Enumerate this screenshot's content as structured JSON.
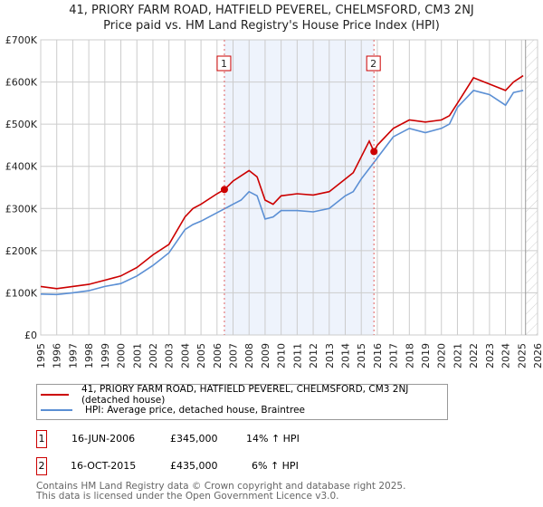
{
  "title": "41, PRIORY FARM ROAD, HATFIELD PEVEREL, CHELMSFORD, CM3 2NJ",
  "subtitle": "Price paid vs. HM Land Registry's House Price Index (HPI)",
  "legend": {
    "property": "41, PRIORY FARM ROAD, HATFIELD PEVEREL, CHELMSFORD, CM3 2NJ (detached house)",
    "hpi": "HPI: Average price, detached house, Braintree"
  },
  "sales": [
    {
      "marker": "1",
      "date": "16-JUN-2006",
      "price": "£345,000",
      "hpi_change": "14% ↑ HPI",
      "x": 2006.46,
      "value": 345000
    },
    {
      "marker": "2",
      "date": "16-OCT-2015",
      "price": "£435,000",
      "hpi_change": "6% ↑ HPI",
      "x": 2015.79,
      "value": 435000
    }
  ],
  "footer": {
    "line1": "Contains HM Land Registry data © Crown copyright and database right 2025.",
    "line2": "This data is licensed under the Open Government Licence v3.0."
  },
  "colors": {
    "property": "#cc0000",
    "hpi": "#5b8fd4",
    "shade": "#eef3fc",
    "grid": "#cccccc"
  },
  "chart_data": {
    "type": "line",
    "xlim": [
      1995,
      2026
    ],
    "ylim": [
      0,
      700000
    ],
    "x_ticks": [
      "1995",
      "1996",
      "1997",
      "1998",
      "1999",
      "2000",
      "2001",
      "2002",
      "2003",
      "2004",
      "2005",
      "2006",
      "2007",
      "2008",
      "2009",
      "2010",
      "2011",
      "2012",
      "2013",
      "2014",
      "2015",
      "2016",
      "2017",
      "2018",
      "2019",
      "2020",
      "2021",
      "2022",
      "2023",
      "2024",
      "2025",
      "2026"
    ],
    "y_ticks": [
      {
        "v": 0,
        "label": "£0"
      },
      {
        "v": 100000,
        "label": "£100K"
      },
      {
        "v": 200000,
        "label": "£200K"
      },
      {
        "v": 300000,
        "label": "£300K"
      },
      {
        "v": 400000,
        "label": "£400K"
      },
      {
        "v": 500000,
        "label": "£500K"
      },
      {
        "v": 600000,
        "label": "£600K"
      },
      {
        "v": 700000,
        "label": "£700K"
      }
    ],
    "shaded_range": [
      2006.46,
      2015.79
    ],
    "forecast_from": 2025.25,
    "series": [
      {
        "name": "property",
        "x": [
          1995,
          1996,
          1997,
          1998,
          1999,
          2000,
          2001,
          2002,
          2003,
          2004,
          2004.5,
          2005,
          2006,
          2006.46,
          2007,
          2008,
          2008.5,
          2009,
          2009.5,
          2010,
          2011,
          2012,
          2013,
          2014,
          2014.5,
          2015.5,
          2015.79,
          2016,
          2017,
          2018,
          2019,
          2020,
          2020.5,
          2021,
          2022,
          2023,
          2024,
          2024.5,
          2025.1
        ],
        "values": [
          115000,
          110000,
          115000,
          120000,
          130000,
          140000,
          160000,
          190000,
          215000,
          280000,
          300000,
          310000,
          335000,
          345000,
          365000,
          390000,
          375000,
          320000,
          310000,
          330000,
          335000,
          332000,
          340000,
          370000,
          385000,
          460000,
          435000,
          450000,
          490000,
          510000,
          505000,
          510000,
          520000,
          550000,
          610000,
          595000,
          580000,
          600000,
          615000
        ]
      },
      {
        "name": "hpi",
        "x": [
          1995,
          1996,
          1997,
          1998,
          1999,
          2000,
          2001,
          2002,
          2003,
          2004,
          2004.5,
          2005,
          2006,
          2006.5,
          2007,
          2007.5,
          2008,
          2008.5,
          2009,
          2009.5,
          2010,
          2011,
          2012,
          2013,
          2014,
          2014.5,
          2015,
          2015.8,
          2016,
          2017,
          2018,
          2019,
          2020,
          2020.5,
          2021,
          2022,
          2022.5,
          2023,
          2024,
          2024.5,
          2025.1
        ],
        "values": [
          97000,
          96000,
          100000,
          105000,
          115000,
          122000,
          140000,
          165000,
          195000,
          250000,
          262000,
          270000,
          290000,
          300000,
          310000,
          320000,
          340000,
          330000,
          275000,
          280000,
          295000,
          295000,
          292000,
          300000,
          330000,
          340000,
          370000,
          410000,
          420000,
          470000,
          490000,
          480000,
          490000,
          500000,
          540000,
          580000,
          575000,
          570000,
          545000,
          575000,
          580000
        ]
      }
    ]
  }
}
